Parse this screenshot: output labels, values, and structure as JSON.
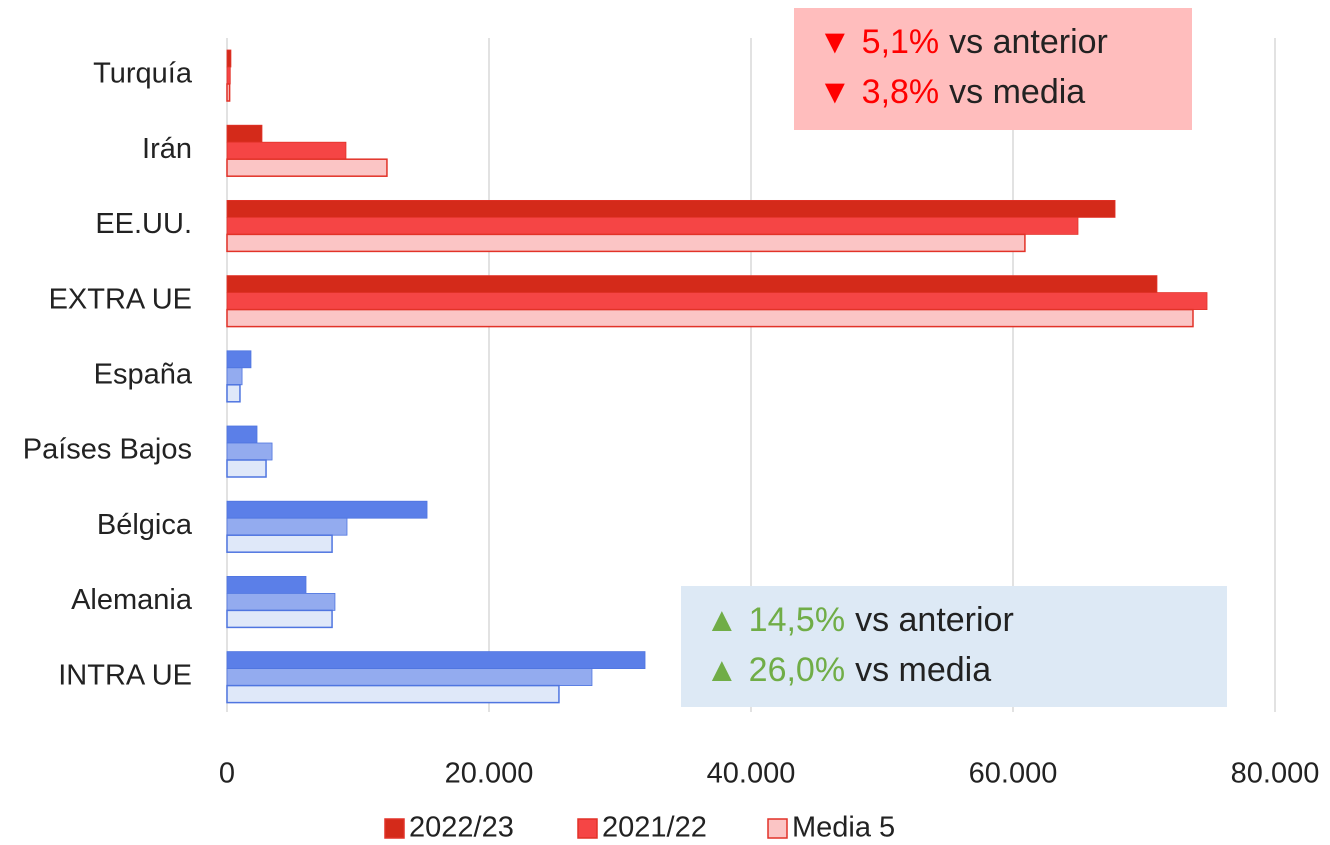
{
  "chart_data": {
    "type": "barh",
    "categories": [
      "Turquía",
      "Irán",
      "EE.UU.",
      "EXTRA UE",
      "España",
      "Países Bajos",
      "Bélgica",
      "Alemania",
      "INTRA UE"
    ],
    "series": [
      {
        "name": "2022/23",
        "color": "#d42a1a",
        "point_colors": [
          "#d42a1a",
          "#d42a1a",
          "#d42a1a",
          "#d42a1a",
          "#5b7fe8",
          "#5b7fe8",
          "#5b7fe8",
          "#5b7fe8",
          "#5b7fe8"
        ],
        "values": [
          300,
          2670,
          67790,
          70990,
          1830,
          2290,
          15270,
          6030,
          31910
        ]
      },
      {
        "name": "2021/22",
        "color": "#f54545",
        "point_colors": [
          "#f54545",
          "#f54545",
          "#f54545",
          "#f54545",
          "#93abef",
          "#93abef",
          "#93abef",
          "#93abef",
          "#93abef"
        ],
        "values": [
          250,
          9080,
          64960,
          74810,
          1150,
          3440,
          9160,
          8240,
          27860
        ]
      },
      {
        "name": "Media 5",
        "color": "#fbc5c5",
        "point_colors": [
          "#fbc5c5",
          "#fbc5c5",
          "#fbc5c5",
          "#fbc5c5",
          "#dfe8f9",
          "#dfe8f9",
          "#dfe8f9",
          "#dfe8f9",
          "#dfe8f9"
        ],
        "values": [
          200,
          12210,
          60910,
          73740,
          990,
          2980,
          8020,
          8020,
          25340
        ]
      }
    ],
    "edge_colors": [
      "#e23228",
      "#e23228",
      "#e23228",
      "#e23228",
      "#4f75e0",
      "#4f75e0",
      "#4f75e0",
      "#4f75e0",
      "#4f75e0"
    ],
    "xlim": [
      0,
      80000
    ],
    "xticks": [
      0,
      {
        "value": 20000,
        "label": "20.000"
      },
      {
        "value": 40000,
        "label": "40.000"
      },
      {
        "value": 60000,
        "label": "60.000"
      },
      {
        "value": 80000,
        "label": "80.000"
      }
    ],
    "grid": true,
    "legend": "bottom",
    "annotations": [
      {
        "fill": "#ffbdbd",
        "accent": "#ff0000",
        "lines": [
          {
            "arrow": "▼",
            "value": "5,1%",
            "text": "vs anterior"
          },
          {
            "arrow": "▼",
            "value": "3,8%",
            "text": "vs media"
          }
        ]
      },
      {
        "fill": "#dde9f5",
        "accent": "#70ad47",
        "lines": [
          {
            "arrow": "▲",
            "value": "14,5%",
            "text": "vs anterior"
          },
          {
            "arrow": "▲",
            "value": "26,0%",
            "text": "vs media"
          }
        ]
      }
    ]
  }
}
